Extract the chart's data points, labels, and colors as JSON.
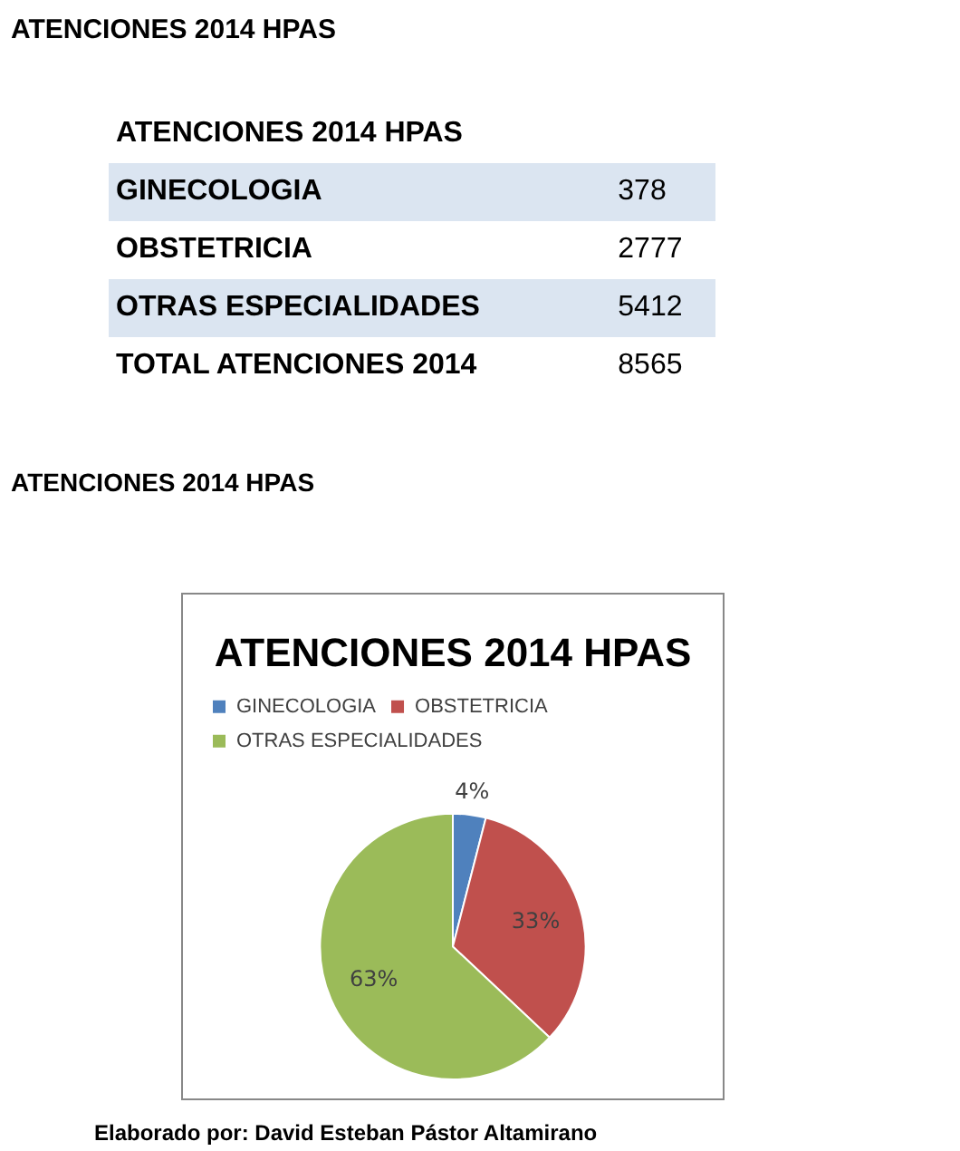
{
  "chart_data": {
    "type": "pie",
    "title": "ATENCIONES 2014 HPAS",
    "categories": [
      "GINECOLOGIA",
      "OBSTETRICIA",
      "OTRAS ESPECIALIDADES"
    ],
    "values": [
      4,
      33,
      63
    ],
    "colors": [
      "#4f81bd",
      "#c0504d",
      "#9bbb59"
    ],
    "value_labels": [
      "4%",
      "33%",
      "63%"
    ],
    "legend": "top",
    "annotations": [
      "ATENCIONES 2014 HPAS",
      "ATENCIONES 2014 HPAS",
      "TOTAL ATENCIONES 2014",
      "8565",
      "ATENCIONES 2014 HPAS",
      "Elaborado por: David Esteban Pástor Altamirano",
      "378",
      "2777",
      "5412"
    ]
  }
}
